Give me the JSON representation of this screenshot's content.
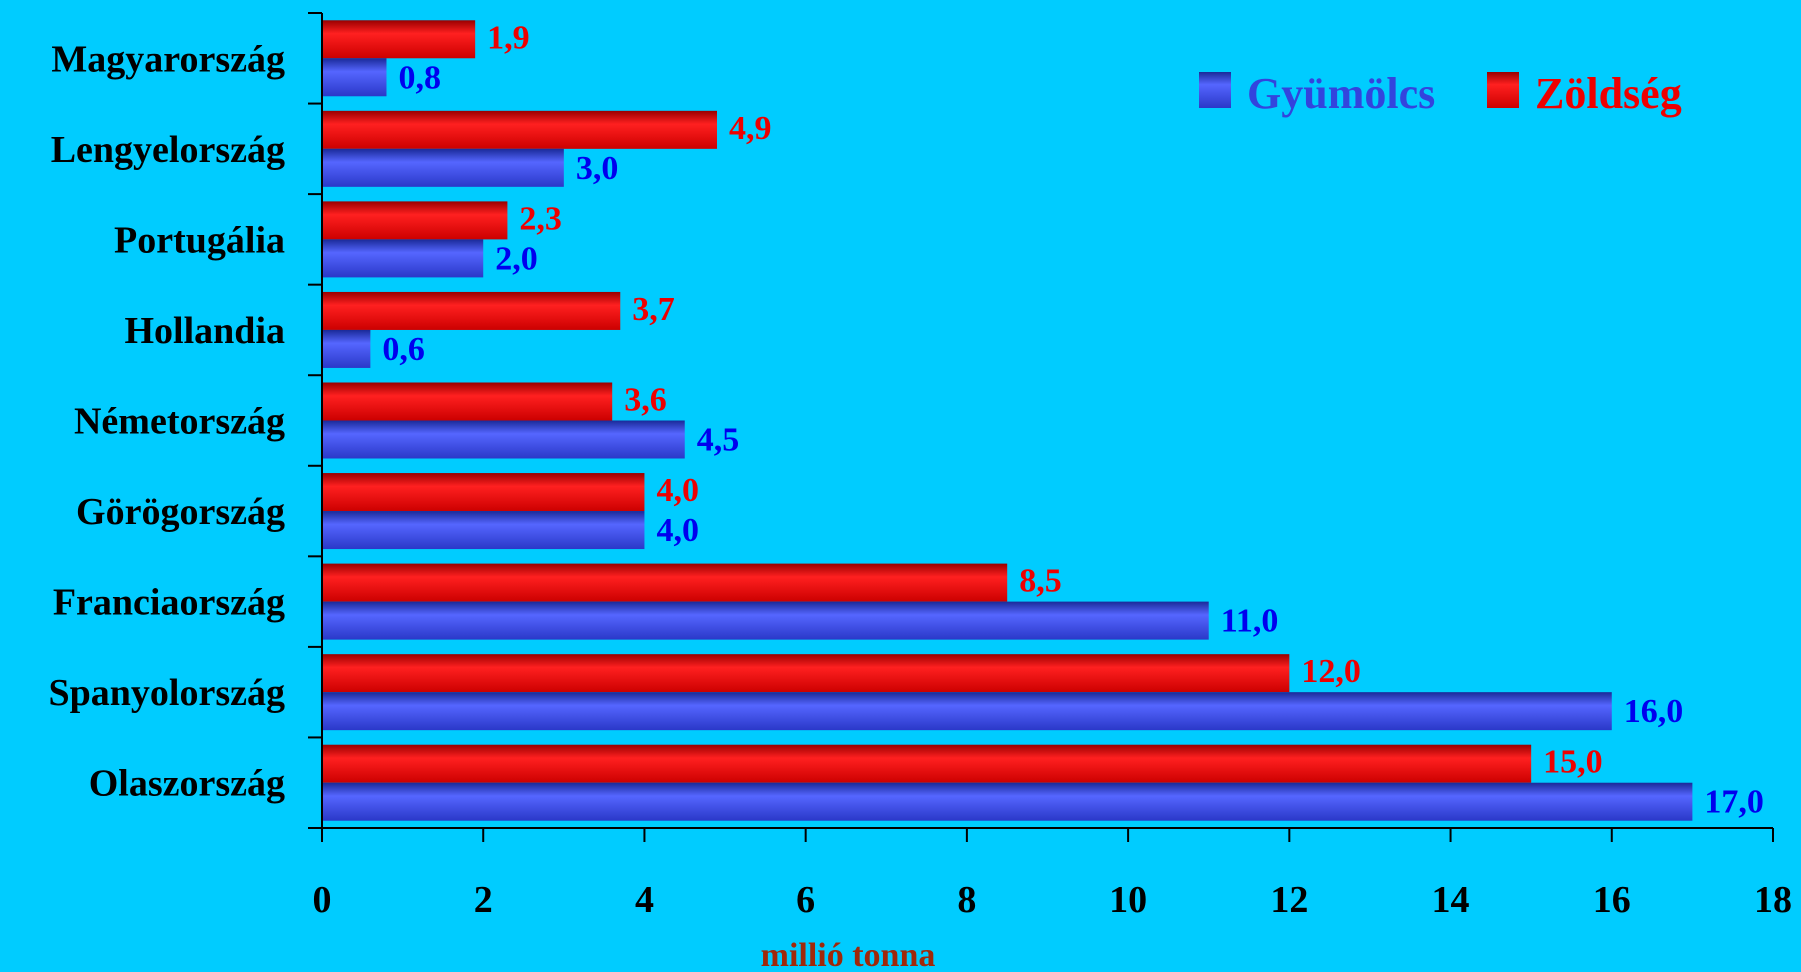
{
  "chart_data": {
    "type": "bar",
    "orientation": "horizontal",
    "categories": [
      "Magyarország",
      "Lengyelország",
      "Portugália",
      "Hollandia",
      "Németország",
      "Görögország",
      "Franciaország",
      "Spanyolország",
      "Olaszország"
    ],
    "series": [
      {
        "name": "Gyümölcs",
        "color": "#3344dd",
        "label_color": "#0000ee",
        "values": [
          0.8,
          3.0,
          2.0,
          0.6,
          4.5,
          4.0,
          11.0,
          16.0,
          17.0
        ],
        "labels": [
          "0,8",
          "3,0",
          "2,0",
          "0,6",
          "4,5",
          "4,0",
          "11,0",
          "16,0",
          "17,0"
        ]
      },
      {
        "name": "Zöldség",
        "color": "#ee0000",
        "label_color": "#ee0000",
        "values": [
          1.9,
          4.9,
          2.3,
          3.7,
          3.6,
          4.0,
          8.5,
          12.0,
          15.0
        ],
        "labels": [
          "1,9",
          "4,9",
          "2,3",
          "3,7",
          "3,6",
          "4,0",
          "8,5",
          "12,0",
          "15,0"
        ]
      }
    ],
    "xticks": [
      "0",
      "2",
      "4",
      "6",
      "8",
      "10",
      "12",
      "14",
      "16",
      "18"
    ],
    "xlim": [
      0,
      18
    ],
    "xlabel": "millió tonna",
    "legend_position": "top-right",
    "grid": false
  }
}
